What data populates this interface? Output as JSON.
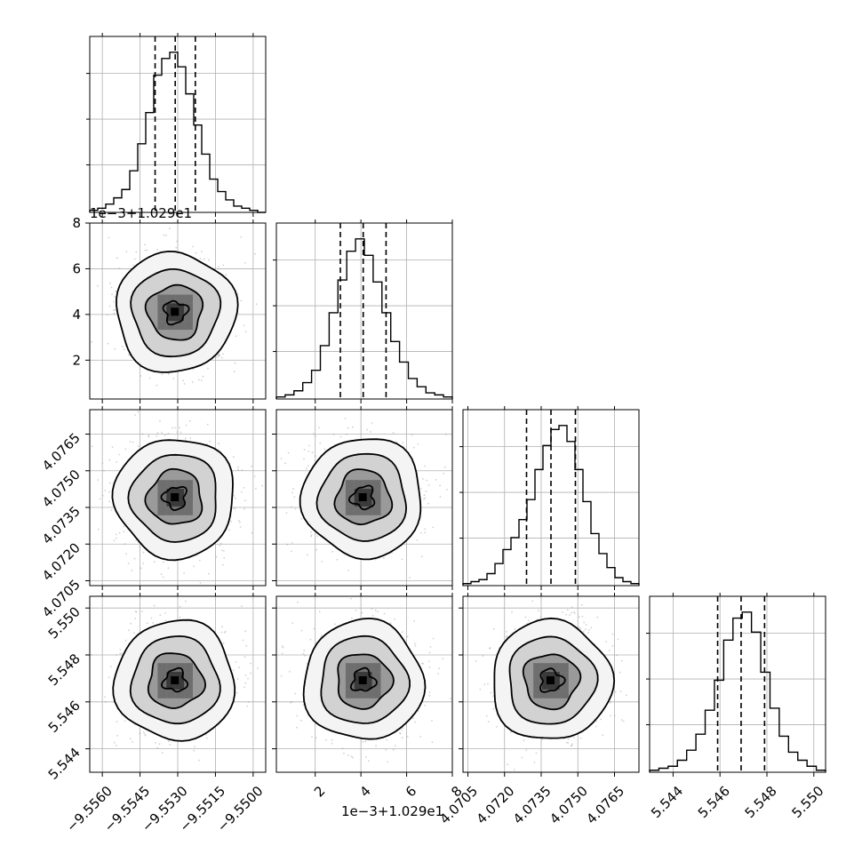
{
  "chart_data": {
    "type": "corner",
    "grid": true,
    "parameters": [
      {
        "id": "p1",
        "range": [
          -9.5565,
          -9.5495
        ],
        "ticks": [
          -9.556,
          -9.5545,
          -9.553,
          -9.5515,
          -9.55
        ],
        "tick_labels": [
          "−9.5560",
          "−9.5545",
          "−9.5530",
          "−9.5515",
          "−9.5500"
        ],
        "offset_text": "",
        "quantiles": [
          -9.5539,
          -9.5531,
          -9.5523
        ],
        "hist_counts": [
          1,
          2,
          4,
          7,
          11,
          20,
          33,
          48,
          66,
          74,
          77,
          70,
          57,
          42,
          28,
          16,
          10,
          6,
          3,
          2,
          1,
          0
        ]
      },
      {
        "id": "p2",
        "range": [
          0.3,
          8.0
        ],
        "ticks": [
          2,
          4,
          6,
          8
        ],
        "tick_labels": [
          "2",
          "4",
          "6",
          "8"
        ],
        "offset_text": "1e−3+1.029e1",
        "quantiles": [
          3.1,
          4.1,
          5.1
        ],
        "hist_counts": [
          1,
          2,
          4,
          8,
          14,
          26,
          42,
          58,
          72,
          78,
          70,
          57,
          42,
          28,
          18,
          10,
          6,
          3,
          2,
          1
        ]
      },
      {
        "id": "p3",
        "range": [
          4.0703,
          4.0775
        ],
        "ticks": [
          4.0705,
          4.072,
          4.0735,
          4.075,
          4.0765
        ],
        "tick_labels": [
          "4.0705",
          "4.0720",
          "4.0735",
          "4.0750",
          "4.0765"
        ],
        "offset_text": "",
        "quantiles": [
          4.0729,
          4.0739,
          4.0749
        ],
        "hist_counts": [
          1,
          2,
          3,
          6,
          11,
          18,
          24,
          33,
          43,
          58,
          70,
          78,
          80,
          72,
          58,
          42,
          26,
          16,
          9,
          4,
          2,
          1
        ]
      },
      {
        "id": "p4",
        "range": [
          5.543,
          5.5505
        ],
        "ticks": [
          5.544,
          5.546,
          5.548,
          5.55
        ],
        "tick_labels": [
          "5.544",
          "5.546",
          "5.548",
          "5.550"
        ],
        "offset_text": "",
        "quantiles": [
          5.5459,
          5.5469,
          5.5479
        ],
        "hist_counts": [
          1,
          2,
          3,
          6,
          11,
          19,
          31,
          46,
          66,
          77,
          80,
          70,
          50,
          32,
          18,
          10,
          6,
          3,
          1
        ]
      }
    ],
    "contour_levels": [
      0.118,
      0.393,
      0.675,
      0.865
    ],
    "scatter_color": "#999999",
    "line_color": "#000000"
  }
}
